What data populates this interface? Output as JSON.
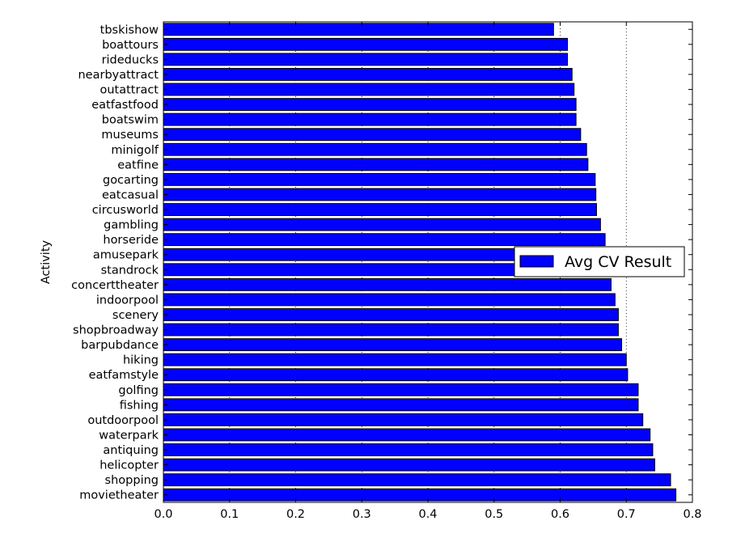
{
  "chart_data": {
    "type": "bar",
    "orientation": "horizontal",
    "title": "",
    "xlabel": "",
    "ylabel": "Activity",
    "xlim": [
      0.0,
      0.8
    ],
    "xticks": [
      "0.0",
      "0.1",
      "0.2",
      "0.3",
      "0.4",
      "0.5",
      "0.6",
      "0.7",
      "0.8"
    ],
    "grid": true,
    "legend": {
      "position": "center-right",
      "entries": [
        "Avg CV Result"
      ]
    },
    "bar_color": "#0000ff",
    "categories": [
      "tbskishow",
      "boattours",
      "rideducks",
      "nearbyattract",
      "outattract",
      "eatfastfood",
      "boatswim",
      "museums",
      "minigolf",
      "eatfine",
      "gocarting",
      "eatcasual",
      "circusworld",
      "gambling",
      "horseride",
      "amusepark",
      "standrock",
      "concerttheater",
      "indoorpool",
      "scenery",
      "shopbroadway",
      "barpubdance",
      "hiking",
      "eatfamstyle",
      "golfing",
      "fishing",
      "outdoorpool",
      "waterpark",
      "antiquing",
      "helicopter",
      "shopping",
      "movietheater"
    ],
    "series": [
      {
        "name": "Avg CV Result",
        "values": [
          0.59,
          0.611,
          0.611,
          0.618,
          0.621,
          0.624,
          0.624,
          0.631,
          0.64,
          0.642,
          0.653,
          0.654,
          0.655,
          0.661,
          0.668,
          0.674,
          0.676,
          0.677,
          0.683,
          0.688,
          0.688,
          0.693,
          0.7,
          0.702,
          0.718,
          0.718,
          0.725,
          0.736,
          0.74,
          0.743,
          0.767,
          0.775
        ]
      }
    ]
  }
}
